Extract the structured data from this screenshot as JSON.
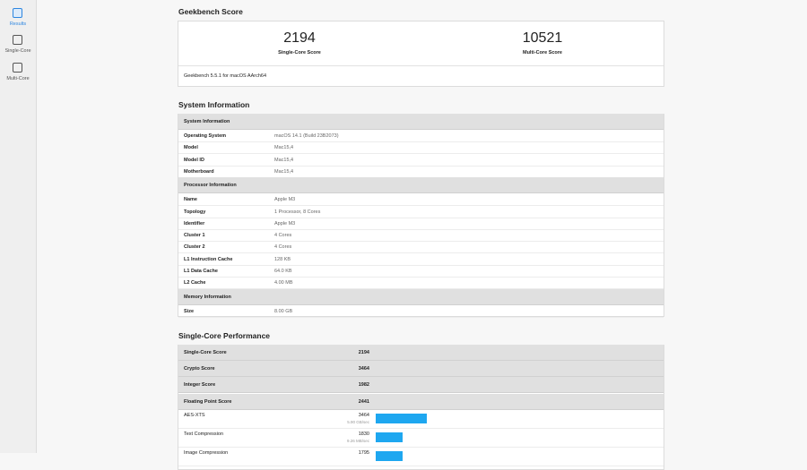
{
  "sidebar": {
    "items": [
      "Results",
      "Single-Core",
      "Multi-Core"
    ]
  },
  "geekbench_score": {
    "title": "Geekbench Score",
    "scores": [
      {
        "value": "2194",
        "label": "Single-Core Score"
      },
      {
        "value": "10521",
        "label": "Multi-Core Score"
      }
    ],
    "version": "Geekbench 5.5.1 for macOS AArch64"
  },
  "system_information": {
    "title": "System Information",
    "sections": [
      {
        "title": "System Information",
        "rows": [
          [
            "Operating System",
            "macOS 14.1 (Build 23B2073)"
          ],
          [
            "Model",
            "Mac15,4"
          ],
          [
            "Model ID",
            "Mac15,4"
          ],
          [
            "Motherboard",
            "Mac15,4"
          ]
        ]
      },
      {
        "title": "Processor Information",
        "rows": [
          [
            "Name",
            "Apple M3"
          ],
          [
            "Topology",
            "1 Processor, 8 Cores"
          ],
          [
            "Identifier",
            "Apple M3"
          ],
          [
            "Cluster 1",
            "4 Cores"
          ],
          [
            "Cluster 2",
            "4 Cores"
          ],
          [
            "L1 Instruction Cache",
            "128 KB"
          ],
          [
            "L1 Data Cache",
            "64.0 KB"
          ],
          [
            "L2 Cache",
            "4.00 MB"
          ]
        ]
      },
      {
        "title": "Memory Information",
        "rows": [
          [
            "Size",
            "8.00 GB"
          ]
        ]
      }
    ]
  },
  "single_core_performance": {
    "title": "Single-Core Performance",
    "summary": [
      [
        "Single-Core Score",
        2194
      ],
      [
        "Crypto Score",
        3464
      ],
      [
        "Integer Score",
        1982
      ],
      [
        "Floating Point Score",
        2441
      ]
    ],
    "workloads": [
      {
        "name": "AES-XTS",
        "score": 3464,
        "rate": "5.90 GB/sec"
      },
      {
        "name": "Text Compression",
        "score": 1830,
        "rate": "9.26 MB/sec"
      },
      {
        "name": "Image Compression",
        "score": 1795
      }
    ]
  }
}
